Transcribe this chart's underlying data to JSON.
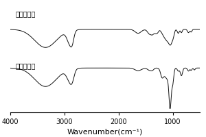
{
  "xlabel": "Wavenumber(cm⁻¹)",
  "label_top": "改性后维素",
  "label_bot": "改性前维素",
  "xticks": [
    4000,
    3000,
    2000,
    1000
  ],
  "line_color": "#111111",
  "background_color": "#ffffff",
  "font_size_label": 7,
  "font_size_axis": 7
}
